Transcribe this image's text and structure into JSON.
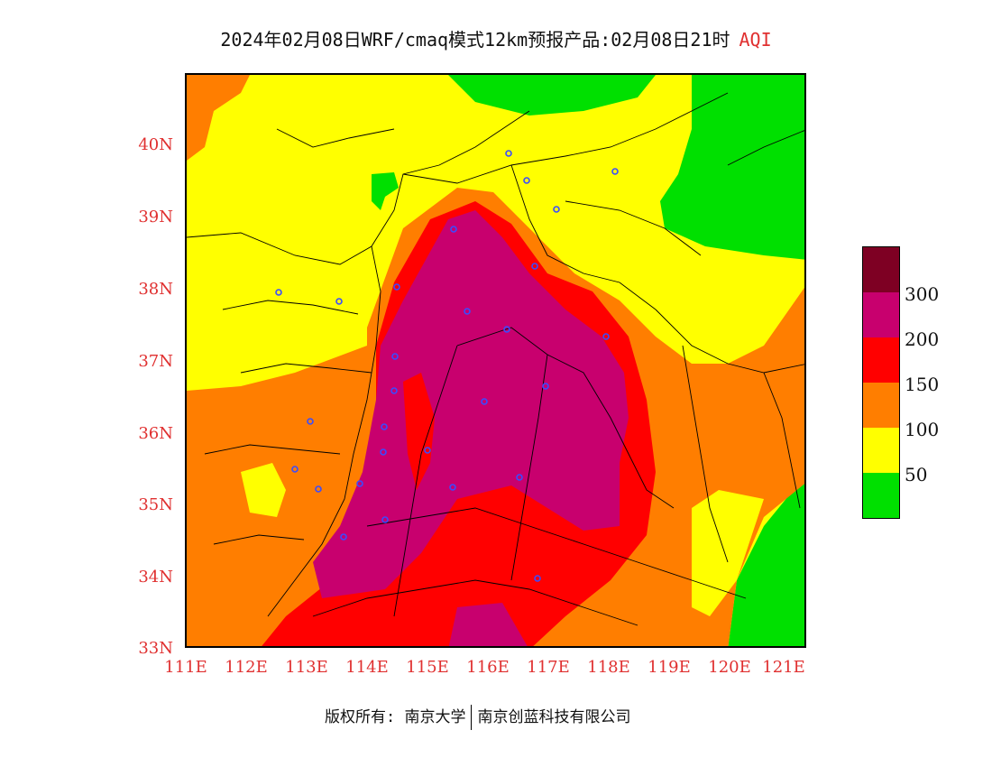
{
  "title": {
    "text": "2024年02月08日WRF/cmaq模式12km预报产品:02月08日21时",
    "variable": "AQI"
  },
  "map": {
    "lat_labels": [
      "40N",
      "39N",
      "38N",
      "37N",
      "36N",
      "35N",
      "34N",
      "33N"
    ],
    "lon_labels": [
      "111E",
      "112E",
      "113E",
      "114E",
      "115E",
      "116E",
      "117E",
      "118E",
      "119E",
      "120E",
      "121E"
    ],
    "colors": {
      "good": "#00e000",
      "moderate": "#ffff00",
      "sensitive": "#ff7e00",
      "unhealthy": "#ff0000",
      "very_unhealthy": "#c8006e",
      "hazardous": "#7e0023",
      "boundary": "#000000",
      "city_marker": "#3a4cff"
    }
  },
  "legend": {
    "labels": [
      "300",
      "200",
      "150",
      "100",
      "50"
    ],
    "colors": [
      "#7e0023",
      "#c8006e",
      "#ff0000",
      "#ff7e00",
      "#ffff00",
      "#00e000"
    ]
  },
  "footer": {
    "left": "版权所有: 南京大学",
    "right": "南京创蓝科技有限公司"
  }
}
